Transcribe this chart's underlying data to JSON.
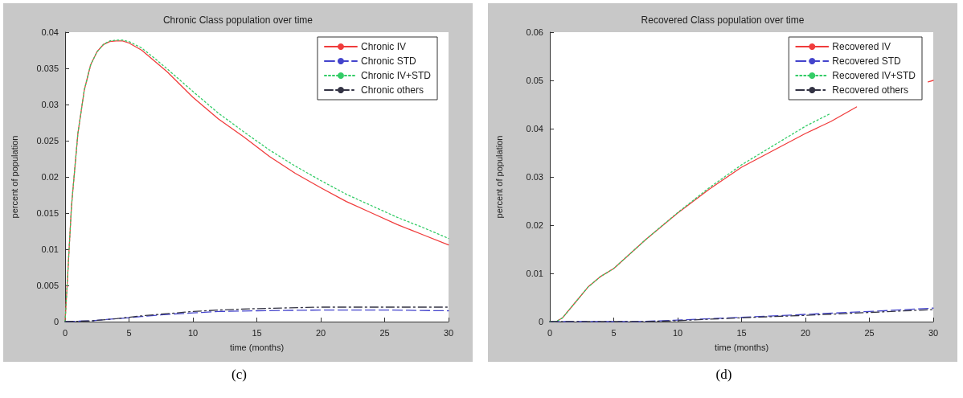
{
  "chart_data": [
    {
      "type": "line",
      "title": "Chronic Class population over time",
      "xlabel": "time (months)",
      "ylabel": "percent of population",
      "annotations": [
        "(c)"
      ],
      "xlim": [
        0,
        30
      ],
      "xticks": [
        0,
        5,
        10,
        15,
        20,
        25,
        30
      ],
      "ylim": [
        0,
        0.04
      ],
      "yticks": [
        0,
        0.005,
        0.01,
        0.015,
        0.02,
        0.025,
        0.03,
        0.035,
        0.04
      ],
      "legend": "top right",
      "grid": false,
      "marker": "none",
      "series": [
        {
          "name": "Chronic IV",
          "color": "#f03c3c",
          "line_style": "solid",
          "x": [
            0,
            0.25,
            0.5,
            1,
            1.5,
            2,
            2.5,
            3,
            3.5,
            4,
            4.5,
            5,
            6,
            7,
            8,
            10,
            12,
            14,
            16,
            18,
            20,
            22,
            24,
            26,
            28,
            30
          ],
          "values": [
            0,
            0.008,
            0.016,
            0.026,
            0.032,
            0.0355,
            0.0373,
            0.0383,
            0.0387,
            0.0388,
            0.0388,
            0.0385,
            0.0375,
            0.036,
            0.0345,
            0.031,
            0.028,
            0.0255,
            0.0228,
            0.0205,
            0.0185,
            0.0166,
            0.015,
            0.0134,
            0.012,
            0.0106
          ]
        },
        {
          "name": "Chronic STD",
          "color": "#4444cc",
          "line_style": "dashed",
          "x": [
            0,
            2,
            4,
            6,
            8,
            10,
            12,
            15,
            20,
            25,
            30
          ],
          "values": [
            0,
            0.0001,
            0.0004,
            0.0007,
            0.001,
            0.0012,
            0.0014,
            0.0015,
            0.0016,
            0.0016,
            0.0015
          ]
        },
        {
          "name": "Chronic IV+STD",
          "color": "#33cc66",
          "line_style": "dotted",
          "x": [
            0,
            0.25,
            0.5,
            1,
            1.5,
            2,
            2.5,
            3,
            3.5,
            4,
            4.5,
            5,
            6,
            7,
            8,
            10,
            12,
            14,
            16,
            18,
            20,
            22,
            24,
            26,
            28,
            30
          ],
          "values": [
            0,
            0.008,
            0.016,
            0.026,
            0.032,
            0.0355,
            0.0373,
            0.0383,
            0.0388,
            0.0389,
            0.0389,
            0.0387,
            0.0378,
            0.0364,
            0.0349,
            0.0318,
            0.0288,
            0.0262,
            0.0237,
            0.0215,
            0.0195,
            0.0176,
            0.016,
            0.0144,
            0.013,
            0.0115
          ]
        },
        {
          "name": "Chronic others",
          "color": "#333344",
          "line_style": "dashdot",
          "x": [
            0,
            2,
            4,
            6,
            8,
            10,
            12,
            15,
            20,
            25,
            30
          ],
          "values": [
            0,
            0.0001,
            0.0004,
            0.0008,
            0.0011,
            0.0014,
            0.0016,
            0.0018,
            0.002,
            0.002,
            0.002
          ]
        }
      ]
    },
    {
      "type": "line",
      "title": "Recovered Class population over time",
      "xlabel": "time (months)",
      "ylabel": "percent of population",
      "annotations": [
        "(d)"
      ],
      "xlim": [
        0,
        30
      ],
      "xticks": [
        0,
        5,
        10,
        15,
        20,
        25,
        30
      ],
      "ylim": [
        0,
        0.06
      ],
      "yticks": [
        0,
        0.01,
        0.02,
        0.03,
        0.04,
        0.05,
        0.06
      ],
      "legend": "top right",
      "grid": false,
      "marker": "none",
      "series": [
        {
          "name": "Recovered IV",
          "color": "#f03c3c",
          "line_style": "solid",
          "x": [
            0,
            0.5,
            1,
            2,
            3,
            4,
            5,
            7.5,
            10,
            12.5,
            15,
            17.5,
            20,
            22,
            24,
            26,
            28,
            29.6,
            30
          ],
          "values": [
            0,
            0,
            0.0008,
            0.004,
            0.0072,
            0.0094,
            0.011,
            0.017,
            0.0225,
            0.0275,
            0.032,
            0.0355,
            0.039,
            0.0415,
            0.0445,
            null,
            null,
            0.0497,
            0.05
          ]
        },
        {
          "name": "Recovered STD",
          "color": "#4444cc",
          "line_style": "dashed",
          "x": [
            0,
            5,
            7,
            10,
            15,
            20,
            25,
            30
          ],
          "values": [
            0,
            0,
            0,
            0.0003,
            0.0009,
            0.0015,
            0.0021,
            0.0028
          ]
        },
        {
          "name": "Recovered IV+STD",
          "color": "#33cc66",
          "line_style": "dotted",
          "x": [
            0,
            0.5,
            1,
            2,
            3,
            4,
            5,
            7.5,
            10,
            12.5,
            15,
            17.5,
            20,
            22
          ],
          "values": [
            0,
            0,
            0.0008,
            0.004,
            0.0072,
            0.0094,
            0.011,
            0.017,
            0.0226,
            0.0278,
            0.0325,
            0.0365,
            0.0405,
            0.0432
          ]
        },
        {
          "name": "Recovered others",
          "color": "#333344",
          "line_style": "dashdot",
          "x": [
            0,
            5,
            7,
            10,
            15,
            20,
            25,
            30
          ],
          "values": [
            0,
            0,
            0,
            0.0002,
            0.0008,
            0.0013,
            0.0019,
            0.0025
          ]
        }
      ]
    }
  ]
}
